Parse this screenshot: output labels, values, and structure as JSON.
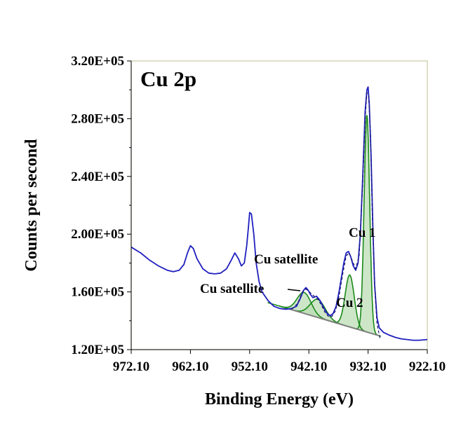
{
  "chart_data": {
    "type": "line",
    "title": "Cu 2p",
    "xlabel": "Binding Energy (eV)",
    "ylabel": "Counts per second",
    "xlim": [
      972.1,
      922.1
    ],
    "x_reversed": true,
    "ylim": [
      120000,
      320000
    ],
    "x_ticks": [
      "972.10",
      "962.10",
      "952.10",
      "942.10",
      "932.10",
      "922.10"
    ],
    "y_ticks": [
      "1.20E+05",
      "1.60E+05",
      "2.00E+05",
      "2.40E+05",
      "2.80E+05",
      "3.20E+05"
    ],
    "grid": false,
    "colors": {
      "spectrum": "#1f1fbf",
      "fit": "#1a8a1a",
      "fill": "#b8dcb0",
      "envelope": "#1a1a6a",
      "background": "#808080",
      "plot_border": "#c8c8a0"
    },
    "series": [
      {
        "type": "line",
        "points": [
          [
            972.1,
            191000
          ],
          [
            970.5,
            187000
          ],
          [
            969.0,
            182000
          ],
          [
            967.5,
            178000
          ],
          [
            966.0,
            175000
          ],
          [
            965.0,
            174000
          ],
          [
            964.0,
            175000
          ],
          [
            963.2,
            179000
          ],
          [
            962.6,
            187000
          ],
          [
            962.1,
            192000
          ],
          [
            961.6,
            190000
          ],
          [
            961.0,
            183000
          ],
          [
            960.0,
            176000
          ],
          [
            959.0,
            173000
          ],
          [
            958.0,
            172500
          ],
          [
            957.0,
            173000
          ],
          [
            956.0,
            176000
          ],
          [
            955.2,
            182000
          ],
          [
            954.6,
            187000
          ],
          [
            954.0,
            183000
          ],
          [
            953.5,
            178000
          ],
          [
            953.0,
            180000
          ],
          [
            952.6,
            192000
          ],
          [
            952.3,
            205000
          ],
          [
            952.1,
            215000
          ],
          [
            951.8,
            214000
          ],
          [
            951.4,
            200000
          ],
          [
            951.0,
            180000
          ],
          [
            950.5,
            167000
          ],
          [
            950.0,
            160000
          ],
          [
            949.0,
            154000
          ],
          [
            948.0,
            150000
          ],
          [
            947.0,
            148500
          ],
          [
            946.0,
            148000
          ],
          [
            945.0,
            148500
          ],
          [
            944.2,
            150000
          ],
          [
            943.6,
            155000
          ],
          [
            943.0,
            161000
          ],
          [
            942.6,
            163000
          ],
          [
            942.2,
            161000
          ],
          [
            941.8,
            158000
          ],
          [
            941.4,
            156000
          ],
          [
            940.8,
            157000
          ],
          [
            940.2,
            154000
          ],
          [
            939.6,
            149000
          ],
          [
            939.0,
            145000
          ],
          [
            938.5,
            143500
          ],
          [
            938.0,
            145000
          ],
          [
            937.5,
            150000
          ],
          [
            937.0,
            160000
          ],
          [
            936.6,
            170000
          ],
          [
            936.2,
            180000
          ],
          [
            935.8,
            187000
          ],
          [
            935.4,
            188000
          ],
          [
            935.0,
            184000
          ],
          [
            934.6,
            178000
          ],
          [
            934.2,
            175000
          ],
          [
            933.8,
            180000
          ],
          [
            933.4,
            200000
          ],
          [
            933.0,
            240000
          ],
          [
            932.6,
            285000
          ],
          [
            932.3,
            300000
          ],
          [
            932.1,
            302000
          ],
          [
            931.9,
            290000
          ],
          [
            931.6,
            255000
          ],
          [
            931.3,
            205000
          ],
          [
            931.0,
            165000
          ],
          [
            930.6,
            142000
          ],
          [
            930.2,
            135000
          ],
          [
            929.5,
            132000
          ],
          [
            928.5,
            130000
          ],
          [
            927.5,
            128500
          ],
          [
            926.5,
            127500
          ],
          [
            925.5,
            127000
          ],
          [
            924.5,
            126500
          ],
          [
            923.5,
            126500
          ],
          [
            922.1,
            127000
          ]
        ]
      },
      {
        "type": "fit_envelope",
        "points": [
          [
            945.0,
            148000
          ],
          [
            944.0,
            152000
          ],
          [
            943.2,
            160000
          ],
          [
            942.6,
            162000
          ],
          [
            942.0,
            160000
          ],
          [
            941.2,
            157000
          ],
          [
            940.6,
            155000
          ],
          [
            940.0,
            151000
          ],
          [
            939.4,
            146000
          ],
          [
            938.8,
            143000
          ],
          [
            938.2,
            143000
          ],
          [
            937.6,
            147000
          ],
          [
            937.0,
            157000
          ],
          [
            936.4,
            172000
          ],
          [
            935.8,
            185000
          ],
          [
            935.3,
            187000
          ],
          [
            934.8,
            182000
          ],
          [
            934.2,
            176000
          ],
          [
            933.6,
            185000
          ],
          [
            933.0,
            235000
          ],
          [
            932.6,
            280000
          ],
          [
            932.3,
            298000
          ],
          [
            932.0,
            296000
          ],
          [
            931.7,
            270000
          ],
          [
            931.4,
            215000
          ],
          [
            931.0,
            165000
          ],
          [
            930.6,
            138000
          ],
          [
            930.1,
            128000
          ]
        ]
      },
      {
        "type": "background",
        "points": [
          [
            945.3,
            148000
          ],
          [
            930.1,
            129500
          ]
        ]
      },
      {
        "type": "fit_component",
        "name": "Cu satellite (943 eV)",
        "center": 942.9,
        "height": 14500,
        "fwhm": 2.8
      },
      {
        "type": "fit_component",
        "name": "Cu satellite (940 eV)",
        "center": 940.6,
        "height": 12500,
        "fwhm": 3.0
      },
      {
        "type": "fit_component",
        "name": "Cu 2 (935 eV)",
        "center": 935.2,
        "height": 36000,
        "fwhm": 1.8
      },
      {
        "type": "fit_component",
        "name": "Cu 1 (932 eV)",
        "center": 932.3,
        "height": 150000,
        "fwhm": 1.1
      }
    ],
    "annotations": [
      {
        "text": "Cu satellite",
        "at": [
          939.2,
          175000
        ]
      },
      {
        "text": "Cu satellite",
        "at": [
          947.5,
          160000
        ],
        "arrow_to": [
          943.4,
          159000
        ]
      },
      {
        "text": "Cu 1",
        "at": [
          931.0,
          203000
        ]
      },
      {
        "text": "Cu 2",
        "at": [
          933.6,
          148000
        ]
      }
    ]
  }
}
